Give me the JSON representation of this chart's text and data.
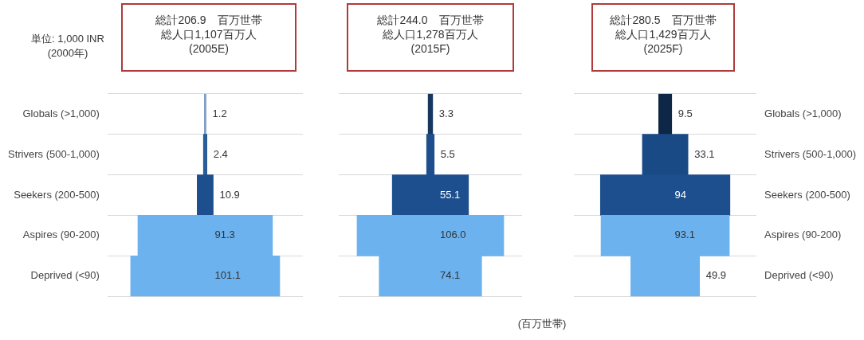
{
  "chart_data": [
    {
      "type": "other",
      "title": "総計206.9　百万世帯",
      "subtitle": "総人口1,107百万人\n(2005E)",
      "annotations": [
        "単位: 1,000 INR\n(2000年)"
      ],
      "categories": [
        "Globals (>1,000)",
        "Strivers (500-1,000)",
        "Seekers (200-500)",
        "Aspires (90-200)",
        "Deprived (<90)"
      ],
      "values": [
        1.2,
        2.4,
        10.9,
        91.3,
        101.1
      ],
      "value_labels": [
        "1.2",
        "2.4",
        "10.9",
        "91.3",
        "101.1"
      ],
      "colors": [
        "#7f9fc4",
        "#2a5c98",
        "#1d4f8e",
        "#6cb2ee",
        "#6cb2ee"
      ]
    },
    {
      "type": "other",
      "title": "総計244.0　百万世帯",
      "subtitle": "総人口1,278百万人\n(2015F)",
      "annotations": [
        "(百万世帯)"
      ],
      "categories": [
        null,
        null,
        null,
        null,
        null
      ],
      "values": [
        3.3,
        5.5,
        55.1,
        106.0,
        74.1
      ],
      "value_labels": [
        "3.3",
        "5.5",
        "55.1",
        "106.0",
        "74.1"
      ],
      "colors": [
        "#17375e",
        "#1f4e8c",
        "#1d4f8e",
        "#6cb2ee",
        "#6cb2ee"
      ]
    },
    {
      "type": "other",
      "title": "総計280.5　百万世帯",
      "subtitle": "総人口1,429百万人\n(2025F)",
      "categories": [
        "Globals (>1,000)",
        "Strivers (500-1,000)",
        "Seekers (200-500)",
        "Aspires (90-200)",
        "Deprived (<90)"
      ],
      "values": [
        9.5,
        33.1,
        94,
        93.1,
        49.9
      ],
      "value_labels": [
        "9.5",
        "33.1",
        "94",
        "93.1",
        "49.9"
      ],
      "colors": [
        "#0f2747",
        "#1a4a86",
        "#1d4f8e",
        "#6cb2ee",
        "#6cb2ee"
      ]
    }
  ]
}
